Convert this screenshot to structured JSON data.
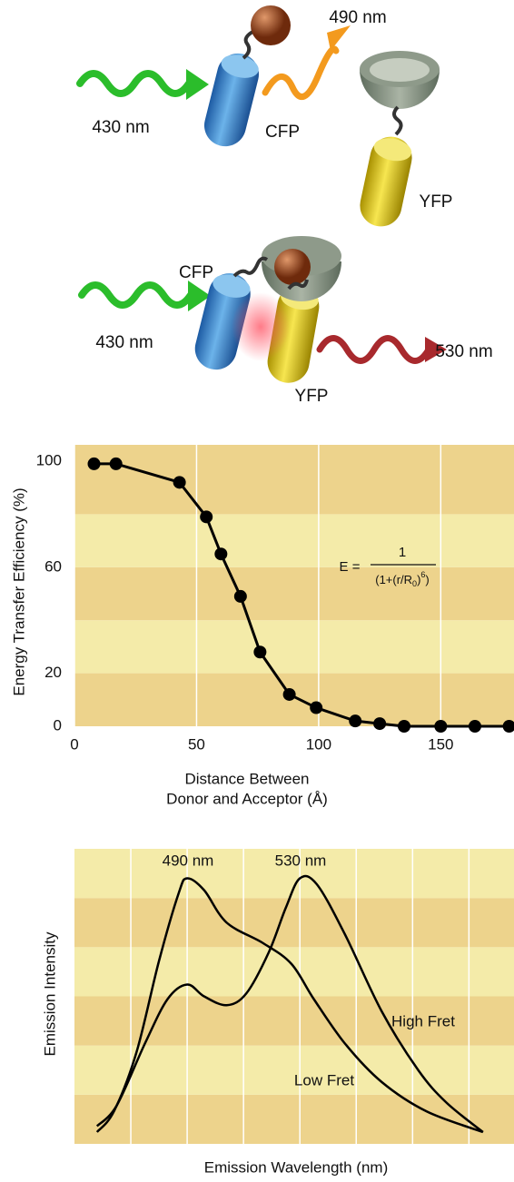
{
  "diagram": {
    "top": {
      "excitation": "430 nm",
      "emission": "490 nm",
      "donor": "CFP",
      "acceptor": "YFP"
    },
    "bottom": {
      "donor": "CFP",
      "excitation": "430 nm",
      "emission": "530 nm",
      "acceptor": "YFP"
    }
  },
  "chart_data": [
    {
      "type": "line",
      "markers": true,
      "color": "#000000",
      "y_label": "Energy Transfer Efficiency (%)",
      "x_label": [
        "Distance Between",
        "Donor and Acceptor (Å)"
      ],
      "x": [
        8,
        17,
        43,
        54,
        60,
        68,
        76,
        88,
        99,
        115,
        125,
        135,
        150,
        164,
        178
      ],
      "values": [
        99,
        99,
        92,
        79,
        65,
        49,
        28,
        12,
        7,
        2,
        1,
        0,
        0,
        0,
        0
      ],
      "xlim": [
        0,
        180
      ],
      "xticks": [
        0,
        50,
        100,
        150
      ],
      "ylim": [
        0,
        100
      ],
      "yticks": [
        0,
        20,
        60,
        100
      ],
      "grid": "x",
      "formula": {
        "lhs": "E =",
        "numerator": "1",
        "denominator": [
          "(1+(r/R",
          "0",
          ")",
          "6",
          ")"
        ]
      }
    },
    {
      "type": "line",
      "smooth": true,
      "y_label": "Emission Intensity",
      "x_label": "Emission Wavelength (nm)",
      "annotations": [
        "490 nm",
        "530 nm"
      ],
      "xlim": [
        450,
        606
      ],
      "ylim": [
        0,
        100
      ],
      "xticks": [
        470,
        490,
        510,
        530,
        550,
        570,
        590
      ],
      "grid": "x",
      "series": [
        {
          "name": "High Fret",
          "color": "#000000",
          "x": [
            458,
            465,
            475,
            483,
            490,
            496,
            504,
            511,
            519,
            525,
            530,
            536,
            546,
            559,
            572,
            582,
            595
          ],
          "values": [
            6,
            13,
            34,
            49,
            54,
            50,
            47,
            51,
            65,
            80,
            90,
            88,
            71,
            45,
            25,
            14,
            4
          ]
        },
        {
          "name": "Low Fret",
          "color": "#000000",
          "x": [
            458,
            464,
            472,
            480,
            487,
            490,
            496,
            504,
            517,
            527,
            535,
            546,
            559,
            575,
            595
          ],
          "values": [
            4,
            11,
            31,
            62,
            85,
            90,
            86,
            75,
            68,
            61,
            49,
            34,
            21,
            11,
            4
          ]
        }
      ]
    }
  ]
}
